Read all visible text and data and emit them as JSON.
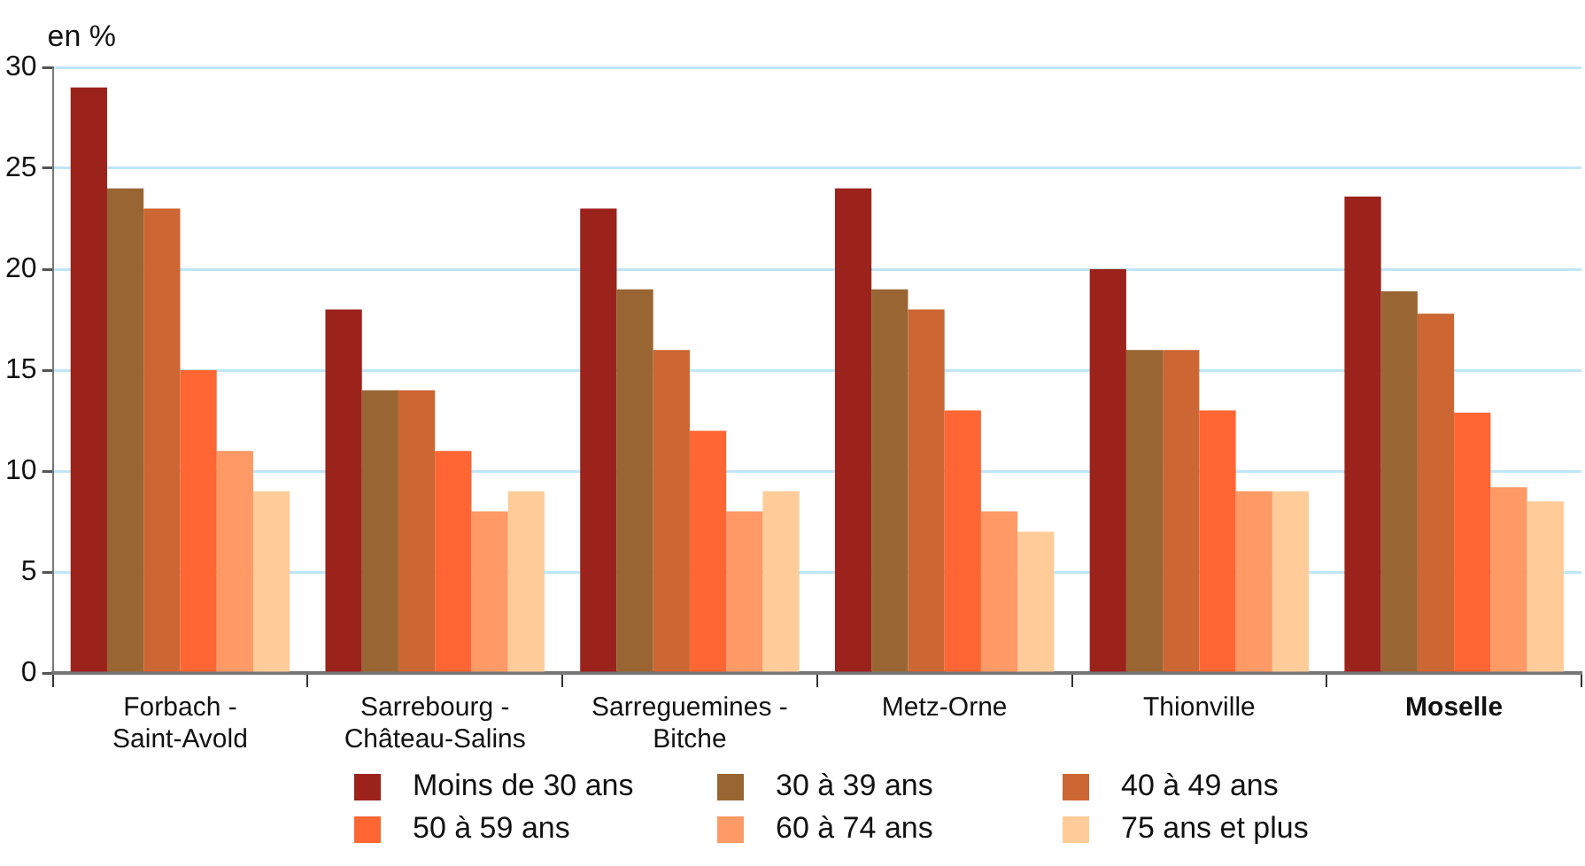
{
  "chart_data": {
    "type": "bar",
    "ylabel": "en %",
    "categories": [
      "Forbach - Saint-Avold",
      "Sarrebourg - Château-Salins",
      "Sarreguemines - Bitche",
      "Metz-Orne",
      "Thionville",
      "Moselle"
    ],
    "series": [
      {
        "name": "Moins de 30 ans",
        "color": "#9c221c",
        "values": [
          29,
          18,
          23,
          24,
          20,
          23.6
        ]
      },
      {
        "name": "30 à 39 ans",
        "color": "#996633",
        "values": [
          24,
          14,
          19,
          19,
          16,
          18.9
        ]
      },
      {
        "name": "40 à 49 ans",
        "color": "#cc6633",
        "values": [
          23,
          14,
          16,
          18,
          16,
          17.8
        ]
      },
      {
        "name": "50 à 59 ans",
        "color": "#ff6633",
        "values": [
          15,
          11,
          12,
          13,
          13,
          12.9
        ]
      },
      {
        "name": "60 à 74 ans",
        "color": "#ff9966",
        "values": [
          11,
          8,
          8,
          8,
          9,
          9.2
        ]
      },
      {
        "name": "75 ans et plus",
        "color": "#ffcc99",
        "values": [
          9,
          9,
          9,
          7,
          9,
          8.5
        ]
      }
    ],
    "ylim": [
      0,
      30
    ],
    "yticks": [
      0,
      5,
      10,
      15,
      20,
      25,
      30
    ],
    "grid": "y",
    "legend": "bottom"
  }
}
